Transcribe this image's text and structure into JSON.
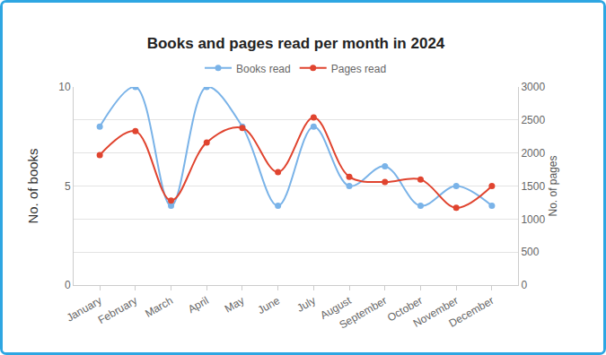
{
  "chart_data": {
    "type": "line",
    "title": "Books and pages read per month in 2024",
    "categories": [
      "January",
      "February",
      "March",
      "April",
      "May",
      "June",
      "July",
      "August",
      "September",
      "October",
      "November",
      "December"
    ],
    "series": [
      {
        "name": "Books read",
        "color": "#7ab3e8",
        "marker": "circle",
        "line_style": "smooth",
        "axis": "y",
        "values": [
          8,
          10,
          4,
          10,
          8,
          4,
          8,
          5,
          6,
          4,
          5,
          4
        ]
      },
      {
        "name": "Pages read",
        "color": "#e0442f",
        "marker": "circle",
        "line_style": "smooth",
        "axis": "y2",
        "values": [
          1970,
          2330,
          1280,
          2160,
          2380,
          1710,
          2540,
          1640,
          1560,
          1600,
          1170,
          1500
        ]
      }
    ],
    "y_label": "No. of books",
    "y2_label": "No. of pages",
    "ylim": [
      0,
      10
    ],
    "yticks": [
      0,
      5,
      10
    ],
    "y2lim": [
      0,
      3000
    ],
    "y2ticks": [
      0,
      500,
      1000,
      1500,
      2000,
      2500,
      3000
    ],
    "grid": true,
    "legend": "top"
  }
}
